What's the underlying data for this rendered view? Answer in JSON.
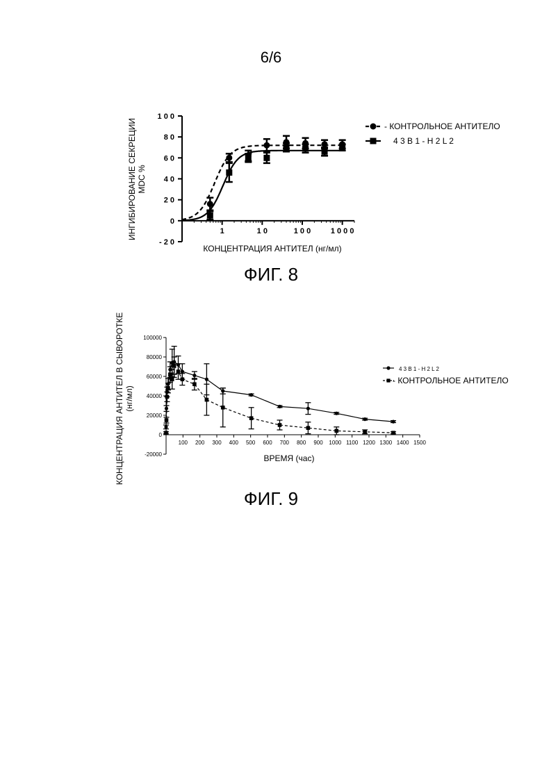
{
  "page": {
    "number": "6/6"
  },
  "chart_data": [
    {
      "type": "scatter",
      "caption": "ФИГ. 8",
      "xlabel": "КОНЦЕНТРАЦИЯ АНТИТЕЛ (нг/мл)",
      "ylabel_lines": [
        "ИНГИБИРОВАНИЕ СЕКРЕЦИИ",
        "MDC %"
      ],
      "xscale": "log",
      "xlim": [
        0.1,
        2000
      ],
      "ylim": [
        -20,
        100
      ],
      "xticks": [
        1,
        10,
        100,
        1000
      ],
      "xtick_labels": [
        "1",
        "1 0",
        "1 0 0",
        "1 0 0 0"
      ],
      "yticks": [
        -20,
        0,
        20,
        40,
        60,
        80,
        100
      ],
      "ytick_labels": [
        "- 2 0",
        "0",
        "2 0",
        "4 0",
        "6 0",
        "8 0",
        "1 0 0"
      ],
      "legend_position": "top-right",
      "series": [
        {
          "name": "- КОНТРОЛЬНОЕ АНТИТЕЛО",
          "marker": "circle",
          "line": "dashed",
          "x": [
            0.5,
            1.5,
            4.5,
            13,
            40,
            120,
            360,
            1000
          ],
          "y": [
            16,
            60,
            62,
            72,
            75,
            74,
            73,
            73
          ],
          "err": [
            6,
            4,
            5,
            6,
            6,
            5,
            4,
            4
          ],
          "fit": {
            "bottom": 0,
            "top": 72,
            "ec50": 0.65,
            "hill": 2.2
          }
        },
        {
          "name": "4 3 B 1 - H 2 L 2",
          "marker": "square",
          "line": "solid",
          "x": [
            0.5,
            1.5,
            4.5,
            13,
            40,
            120,
            360,
            1000
          ],
          "y": [
            5,
            46,
            60,
            60,
            70,
            69,
            66,
            70
          ],
          "err": [
            4,
            9,
            4,
            5,
            4,
            4,
            4,
            3
          ],
          "fit": {
            "bottom": 0,
            "top": 67,
            "ec50": 1.05,
            "hill": 2.3
          }
        }
      ]
    },
    {
      "type": "line",
      "caption": "ФИГ. 9",
      "xlabel": "ВРЕМЯ (час)",
      "ylabel_lines": [
        "КОНЦЕНТРАЦИЯ АНТИТЕЛ В СЫВОРОТКЕ",
        "(нг/мл)"
      ],
      "xlim": [
        0,
        1500
      ],
      "ylim": [
        -20000,
        100000
      ],
      "xticks": [
        100,
        200,
        300,
        400,
        500,
        600,
        700,
        800,
        900,
        1000,
        1100,
        1200,
        1300,
        1400,
        1500
      ],
      "xtick_labels": [
        "100",
        "200",
        "300",
        "400",
        "500",
        "600",
        "700",
        "800",
        "900",
        "1000",
        "1100",
        "1200",
        "1300",
        "1400",
        "1500"
      ],
      "yticks": [
        -20000,
        0,
        20000,
        40000,
        60000,
        80000,
        100000
      ],
      "ytick_labels": [
        "-20000",
        "0",
        "20000",
        "40000",
        "60000",
        "80000",
        "100000"
      ],
      "legend_position": "right",
      "series": [
        {
          "name": "4 3 B 1 - H 2 L 2",
          "marker": "circle",
          "line": "solid",
          "x": [
            0,
            2,
            6,
            12,
            24,
            36,
            48,
            72,
            96,
            168,
            240,
            336,
            504,
            672,
            840,
            1008,
            1176,
            1344
          ],
          "y": [
            8000,
            27000,
            44000,
            52000,
            67000,
            74000,
            75000,
            72000,
            65000,
            61000,
            57000,
            45000,
            41000,
            29000,
            27000,
            22000,
            16000,
            13500
          ],
          "err": [
            2000,
            3000,
            5000,
            6000,
            8000,
            14000,
            16000,
            9000,
            8000,
            4000,
            16000,
            3000,
            1000,
            1000,
            6000,
            1000,
            1000,
            1000
          ]
        },
        {
          "name": "- КОНТРОЛЬНОЕ АНТИТЕЛО",
          "marker": "square",
          "line": "dashed",
          "x": [
            0,
            2,
            6,
            12,
            24,
            36,
            48,
            72,
            96,
            168,
            240,
            336,
            504,
            672,
            840,
            1008,
            1176,
            1344
          ],
          "y": [
            2000,
            15000,
            39000,
            48000,
            62000,
            57000,
            71000,
            65000,
            57000,
            52000,
            36000,
            28000,
            17000,
            10000,
            7000,
            4000,
            3000,
            2000
          ],
          "err": [
            1000,
            3000,
            5000,
            5000,
            8000,
            10000,
            9000,
            8000,
            6000,
            6000,
            16000,
            20000,
            11000,
            5000,
            6000,
            4000,
            2000,
            1000
          ]
        }
      ]
    }
  ]
}
